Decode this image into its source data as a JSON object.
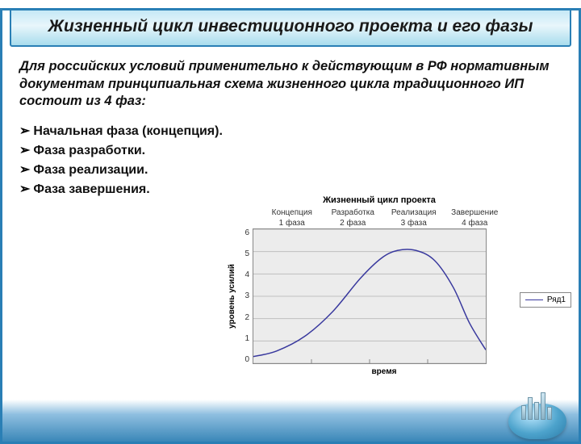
{
  "title": "Жизненный цикл инвестиционного проекта и его фазы",
  "intro": "Для российских условий применительно к действующим в РФ нормативным документам принципиальная схема жизненного цикла традиционного ИП состоит из 4 фаз:",
  "bullets": [
    "Начальная фаза (концепция).",
    "Фаза разработки.",
    "Фаза реализации.",
    "Фаза завершения."
  ],
  "chart": {
    "type": "line",
    "title": "Жизненный цикл проекта",
    "ylabel": "уровень усилий",
    "xlabel": "время",
    "ylim": [
      0,
      6
    ],
    "yticks": [
      0,
      1,
      2,
      3,
      4,
      5,
      6
    ],
    "x_categories": [
      {
        "top": "Концепция",
        "bottom": "1 фаза"
      },
      {
        "top": "Разработка",
        "bottom": "2 фаза"
      },
      {
        "top": "Реализация",
        "bottom": "3 фаза"
      },
      {
        "top": "Завершение",
        "bottom": "4 фаза"
      }
    ],
    "series": {
      "name": "Ряд1",
      "color": "#39399e",
      "line_width": 1.5,
      "points_xy": [
        [
          0.0,
          0.3
        ],
        [
          0.1,
          0.55
        ],
        [
          0.22,
          1.2
        ],
        [
          0.34,
          2.3
        ],
        [
          0.46,
          3.8
        ],
        [
          0.55,
          4.7
        ],
        [
          0.62,
          5.05
        ],
        [
          0.7,
          5.05
        ],
        [
          0.78,
          4.6
        ],
        [
          0.86,
          3.4
        ],
        [
          0.93,
          1.8
        ],
        [
          1.0,
          0.6
        ]
      ]
    },
    "background_color": "#ececec",
    "grid_color": "#bfbfbf",
    "axis_color": "#888888",
    "tick_fontsize": 10,
    "title_fontsize": 11,
    "label_fontsize": 10
  },
  "colors": {
    "frame_border": "#2a7fb5",
    "title_band_gradient": [
      "#c4e8f6",
      "#e8f6fb",
      "#a8dced"
    ],
    "footer_gradient": [
      "#ffffff",
      "#8fbfe0",
      "#3a87b8"
    ]
  }
}
